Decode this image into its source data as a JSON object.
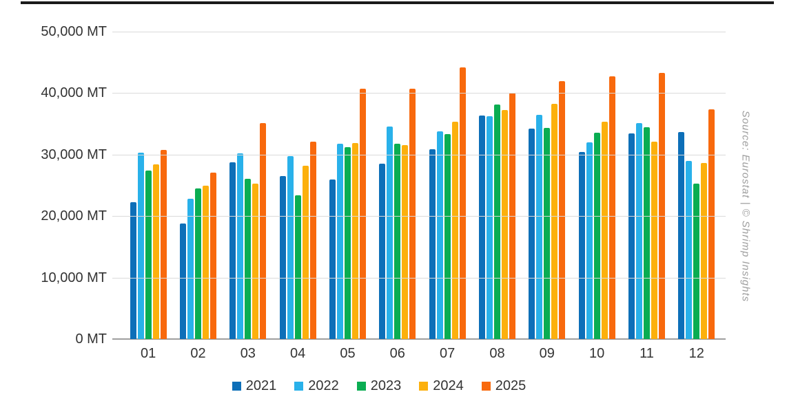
{
  "source_note": "Source: Eurostat | © Shrimp Insights",
  "colors": {
    "grid": "#dadada",
    "axis": "#9e9e9e",
    "text": "#333333",
    "top_rule": "#1a1a1a",
    "source_text": "#9e9e9e"
  },
  "chart_data": {
    "type": "bar",
    "title": "",
    "unit": "MT",
    "xlabel": "",
    "ylabel": "",
    "ylim": [
      0,
      50000
    ],
    "grid": true,
    "legend_position": "bottom",
    "yticks": [
      {
        "value": 0,
        "label": "0 MT"
      },
      {
        "value": 10000,
        "label": "10,000 MT"
      },
      {
        "value": 20000,
        "label": "20,000 MT"
      },
      {
        "value": 30000,
        "label": "30,000 MT"
      },
      {
        "value": 40000,
        "label": "40,000 MT"
      },
      {
        "value": 50000,
        "label": "50,000 MT"
      }
    ],
    "categories": [
      "01",
      "02",
      "03",
      "04",
      "05",
      "06",
      "07",
      "08",
      "09",
      "10",
      "11",
      "12"
    ],
    "series": [
      {
        "name": "2021",
        "color": "#0d6fb8",
        "values": [
          22300,
          18800,
          28700,
          26500,
          25900,
          28500,
          30900,
          36400,
          34200,
          30400,
          33400,
          33700
        ]
      },
      {
        "name": "2022",
        "color": "#29b1ea",
        "values": [
          30300,
          22800,
          30200,
          29700,
          31800,
          34600,
          33800,
          36200,
          36500,
          32000,
          35100,
          29000
        ]
      },
      {
        "name": "2023",
        "color": "#0aad52",
        "values": [
          27400,
          24500,
          26100,
          23400,
          31200,
          31800,
          33300,
          38100,
          34300,
          33600,
          34400,
          25300
        ]
      },
      {
        "name": "2024",
        "color": "#fcb00d",
        "values": [
          28400,
          25000,
          25300,
          28200,
          31900,
          31600,
          35400,
          37300,
          38300,
          35400,
          32100,
          28600
        ]
      },
      {
        "name": "2025",
        "color": "#f8690d",
        "values": [
          30800,
          27100,
          35100,
          32100,
          40700,
          40700,
          44200,
          40100,
          41900,
          42700,
          43300,
          37400
        ]
      }
    ]
  }
}
